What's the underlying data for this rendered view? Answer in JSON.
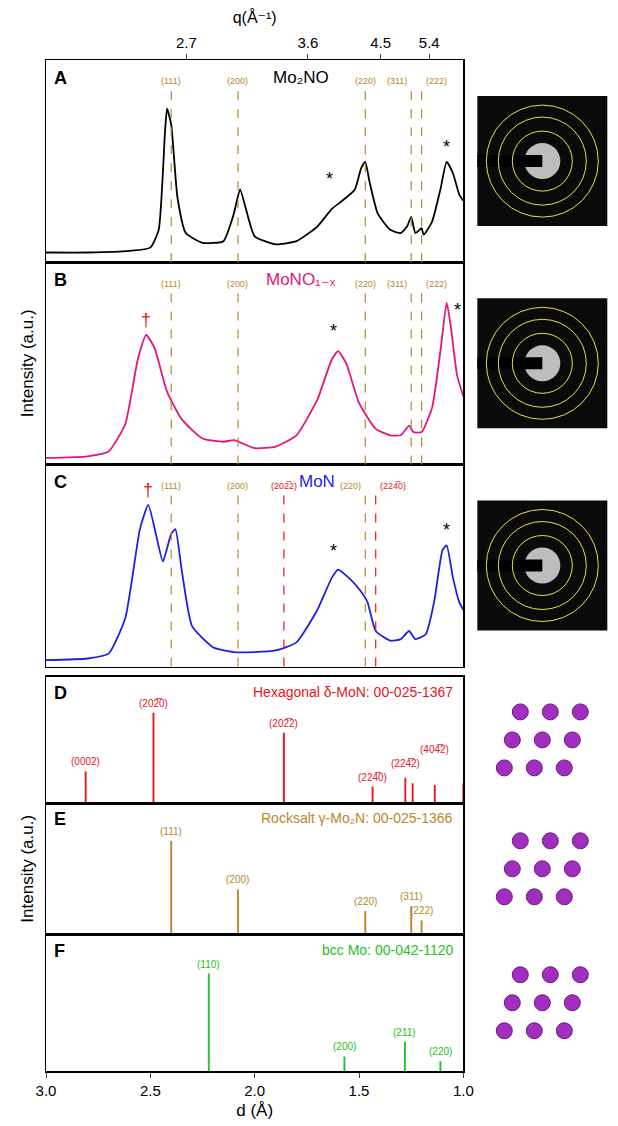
{
  "chart_data": [
    {
      "type": "line",
      "panel": "A",
      "title": "Mo₂NO",
      "color": "#000000",
      "x2label": "q(Å⁻¹)",
      "x2ticks": [
        2.7,
        3.6,
        4.5,
        5.4
      ],
      "tick_labels": "x",
      "xlim": [
        3.0,
        1.0
      ],
      "ylim": [
        0,
        125
      ],
      "x": [
        3.0,
        2.8,
        2.6,
        2.5,
        2.46,
        2.43,
        2.42,
        2.4,
        2.37,
        2.33,
        2.25,
        2.15,
        2.1,
        2.07,
        2.04,
        2.0,
        1.9,
        1.8,
        1.7,
        1.63,
        1.58,
        1.52,
        1.49,
        1.47,
        1.45,
        1.41,
        1.35,
        1.3,
        1.27,
        1.25,
        1.23,
        1.21,
        1.2,
        1.19,
        1.15,
        1.11,
        1.08,
        1.05,
        1.02,
        1.0
      ],
      "values": [
        6,
        6,
        7,
        9,
        20,
        80,
        95,
        85,
        40,
        18,
        12,
        13,
        30,
        45,
        32,
        16,
        11,
        13,
        22,
        33,
        38,
        45,
        58,
        62,
        50,
        30,
        20,
        18,
        22,
        28,
        18,
        20,
        21,
        17,
        25,
        45,
        62,
        55,
        42,
        38
      ],
      "reference_lines": [
        {
          "x": 2.4,
          "label": "(111)",
          "color": "#b8862b"
        },
        {
          "x": 2.08,
          "label": "(200)",
          "color": "#b8862b"
        },
        {
          "x": 1.47,
          "label": "(220)",
          "color": "#b8862b"
        },
        {
          "x": 1.25,
          "label": "(311)",
          "color": "#b8862b"
        },
        {
          "x": 1.2,
          "label": "(222)",
          "color": "#b8862b"
        }
      ],
      "annotations": [
        {
          "text": "*",
          "x": 1.64,
          "y": 44,
          "color": "#000000"
        },
        {
          "text": "*",
          "x": 1.08,
          "y": 64,
          "color": "#000000"
        }
      ]
    },
    {
      "type": "line",
      "panel": "B",
      "title": "MoNO₁₋ₓ",
      "color": "#e5157a",
      "ylabel": "Intensity (a.u.)",
      "tick_labels": false,
      "xlim": [
        3.0,
        1.0
      ],
      "ylim": [
        0,
        125
      ],
      "x": [
        3.0,
        2.8,
        2.7,
        2.62,
        2.56,
        2.52,
        2.48,
        2.42,
        2.35,
        2.25,
        2.15,
        2.1,
        2.0,
        1.9,
        1.8,
        1.7,
        1.63,
        1.6,
        1.56,
        1.5,
        1.42,
        1.35,
        1.3,
        1.26,
        1.24,
        1.2,
        1.15,
        1.11,
        1.08,
        1.06,
        1.03,
        1.0
      ],
      "values": [
        4,
        5,
        8,
        25,
        65,
        80,
        72,
        45,
        28,
        16,
        14,
        15,
        10,
        11,
        18,
        40,
        65,
        70,
        62,
        38,
        22,
        18,
        18,
        24,
        20,
        20,
        35,
        70,
        100,
        85,
        55,
        42
      ],
      "reference_lines": [
        {
          "x": 2.4,
          "label": "(111)",
          "color": "#b8862b"
        },
        {
          "x": 2.08,
          "label": "(200)",
          "color": "#b8862b"
        },
        {
          "x": 1.47,
          "label": "(220)",
          "color": "#b8862b"
        },
        {
          "x": 1.25,
          "label": "(311)",
          "color": "#b8862b"
        },
        {
          "x": 1.2,
          "label": "(222)",
          "color": "#b8862b"
        }
      ],
      "annotations": [
        {
          "text": "†",
          "x": 2.52,
          "y": 82,
          "color": "#e8141b"
        },
        {
          "text": "*",
          "x": 1.62,
          "y": 75,
          "color": "#000000"
        },
        {
          "text": "*",
          "x": 1.03,
          "y": 88,
          "color": "#000000"
        }
      ]
    },
    {
      "type": "line",
      "panel": "C",
      "title": "MoN",
      "color": "#1f1fe6",
      "tick_labels": false,
      "xlim": [
        3.0,
        1.0
      ],
      "ylim": [
        0,
        125
      ],
      "x": [
        3.0,
        2.8,
        2.7,
        2.62,
        2.55,
        2.51,
        2.47,
        2.44,
        2.4,
        2.38,
        2.35,
        2.3,
        2.2,
        2.1,
        2.0,
        1.9,
        1.8,
        1.7,
        1.63,
        1.6,
        1.55,
        1.5,
        1.46,
        1.42,
        1.35,
        1.3,
        1.26,
        1.23,
        1.18,
        1.14,
        1.1,
        1.08,
        1.05,
        1.02,
        1.0
      ],
      "values": [
        4,
        5,
        8,
        30,
        85,
        100,
        80,
        65,
        82,
        85,
        60,
        25,
        12,
        9,
        9,
        10,
        15,
        35,
        55,
        60,
        55,
        48,
        40,
        22,
        16,
        17,
        22,
        17,
        20,
        40,
        72,
        75,
        55,
        40,
        35
      ],
      "reference_lines": [
        {
          "x": 2.4,
          "label": "(111)",
          "color": "#b8862b"
        },
        {
          "x": 2.08,
          "label": "(200)",
          "color": "#b8862b"
        },
        {
          "x": 1.86,
          "label": "(202̅2)",
          "color": "#e8141b"
        },
        {
          "x": 1.47,
          "label": "(220)",
          "color": "#b8862b"
        },
        {
          "x": 1.42,
          "label": "(224̅0)",
          "color": "#e8141b"
        }
      ],
      "annotations": [
        {
          "text": "†",
          "x": 2.51,
          "y": 102,
          "color": "#e8141b"
        },
        {
          "text": "*",
          "x": 1.62,
          "y": 64,
          "color": "#000000"
        },
        {
          "text": "*",
          "x": 1.08,
          "y": 77,
          "color": "#000000"
        }
      ]
    },
    {
      "type": "bar",
      "panel": "D",
      "title": "Hexagonal δ-MoN: 00-025-1367",
      "color": "#e8141b",
      "tick_labels": false,
      "xlim": [
        3.0,
        1.0
      ],
      "ylim": [
        0,
        140
      ],
      "x": [
        2.81,
        2.485,
        1.86,
        1.435,
        1.278,
        1.243,
        1.137,
        1.0
      ],
      "values": [
        35,
        100,
        78,
        18,
        28,
        22,
        20,
        22
      ],
      "labels": [
        "(0002)",
        "(202̅0)",
        "(202̅2)",
        "(224̅0)",
        "(224̅2)",
        null,
        "(404̅2)",
        null
      ]
    },
    {
      "type": "bar",
      "panel": "E",
      "title": "Rocksalt γ-Mo₂N: 00-025-1366",
      "color": "#b8862b",
      "ylabel": "Intensity (a.u.)",
      "tick_labels": false,
      "xlim": [
        3.0,
        1.0
      ],
      "ylim": [
        0,
        140
      ],
      "x": [
        2.4,
        2.08,
        1.47,
        1.25,
        1.2
      ],
      "values": [
        100,
        48,
        25,
        30,
        15
      ],
      "labels": [
        "(111)",
        "(200)",
        "(220)",
        "(311)",
        "(222)"
      ]
    },
    {
      "type": "bar",
      "panel": "F",
      "title": "bcc Mo: 00-042-1120",
      "color": "#22c322",
      "xlabel": "d (Å)",
      "tick_labels": "x",
      "xlim": [
        3.0,
        1.0
      ],
      "ylim": [
        0,
        140
      ],
      "xticks": [
        {
          "value": 3,
          "label": "3.0"
        },
        2.5,
        {
          "value": 2,
          "label": "2.0"
        },
        1.5,
        {
          "value": 1,
          "label": "1.0"
        }
      ],
      "x": [
        2.22,
        1.57,
        1.28,
        1.11
      ],
      "values": [
        100,
        15,
        30,
        10
      ],
      "labels": [
        "(110)",
        "(200)",
        "(211)",
        "(220)"
      ]
    }
  ]
}
